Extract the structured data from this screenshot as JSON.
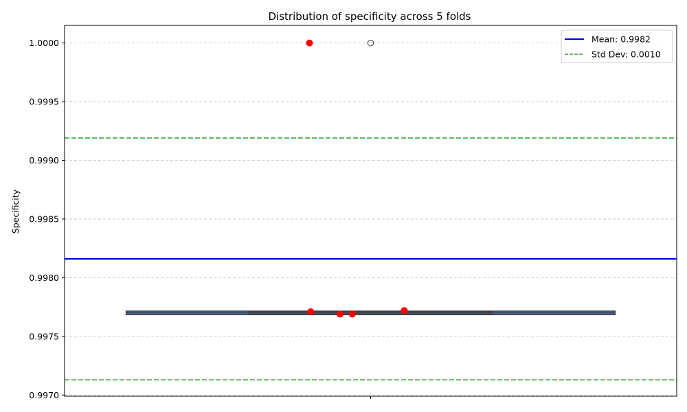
{
  "chart_data": {
    "type": "box",
    "title": "Distribution of specificity across 5 folds",
    "ylabel": "Specificity",
    "xlabel": "",
    "ylim": [
      0.99699,
      1.00015
    ],
    "yticks": [
      0.997,
      0.9975,
      0.998,
      0.9985,
      0.999,
      0.9995,
      1.0
    ],
    "ytick_labels": [
      "0.9970",
      "0.9975",
      "0.9980",
      "0.9985",
      "0.9990",
      "0.9995",
      "1.0000"
    ],
    "grid": true,
    "legend_position": "top-right",
    "box": {
      "q1": 0.99769,
      "median": 0.9977,
      "q3": 0.99771,
      "whisker_low": 0.99769,
      "whisker_high": 0.99771,
      "outliers": [
        1.0
      ],
      "box_color": "#4c72b0"
    },
    "points": [
      {
        "x": -0.1,
        "y": 1.0
      },
      {
        "x": -0.098,
        "y": 0.99771
      },
      {
        "x": -0.05,
        "y": 0.99769
      },
      {
        "x": -0.03,
        "y": 0.99769
      },
      {
        "x": 0.055,
        "y": 0.99772
      }
    ],
    "mean": 0.99816,
    "std_upper": 0.99919,
    "std_lower": 0.99713,
    "legend": [
      {
        "label": "Mean: 0.9982",
        "color": "#0000ff",
        "style": "solid"
      },
      {
        "label": "Std Dev: 0.0010",
        "color": "#2ca02c",
        "style": "dashed"
      }
    ],
    "colors": {
      "points": "#ff0000",
      "mean": "#0000ff",
      "std": "#2ca02c"
    }
  }
}
